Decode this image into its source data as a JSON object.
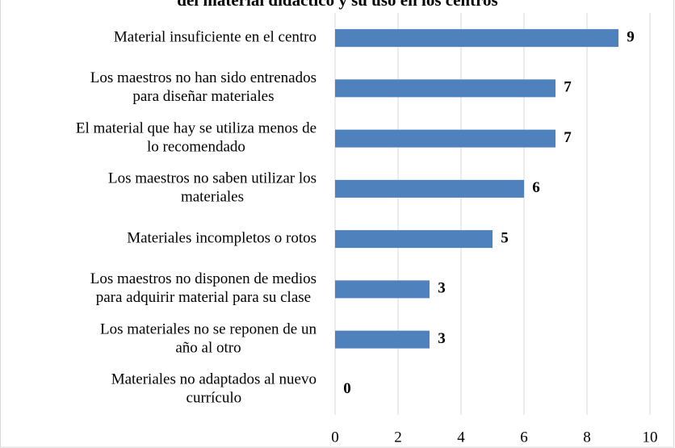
{
  "chart_data": {
    "type": "bar",
    "orientation": "horizontal",
    "title": "del material didáctico y su uso en los centros",
    "categories": [
      [
        "Material insuficiente en el centro"
      ],
      [
        "Los maestros no han sido entrenados",
        "para diseñar materiales"
      ],
      [
        "El material que hay se utiliza menos de",
        "lo recomendado"
      ],
      [
        "Los maestros no saben utilizar  los",
        "materiales"
      ],
      [
        "Materiales incompletos o rotos"
      ],
      [
        "Los maestros no disponen de medios",
        "para adquirir material para su clase"
      ],
      [
        "Los materiales no se reponen de un",
        "año al otro"
      ],
      [
        "Materiales no adaptados al nuevo",
        "currículo"
      ]
    ],
    "values": [
      9,
      7,
      7,
      6,
      5,
      3,
      3,
      0
    ],
    "color": "#4f81bd",
    "xlim": [
      0,
      10
    ],
    "xticks": [
      0,
      2,
      4,
      6,
      8,
      10
    ],
    "grid": true
  }
}
